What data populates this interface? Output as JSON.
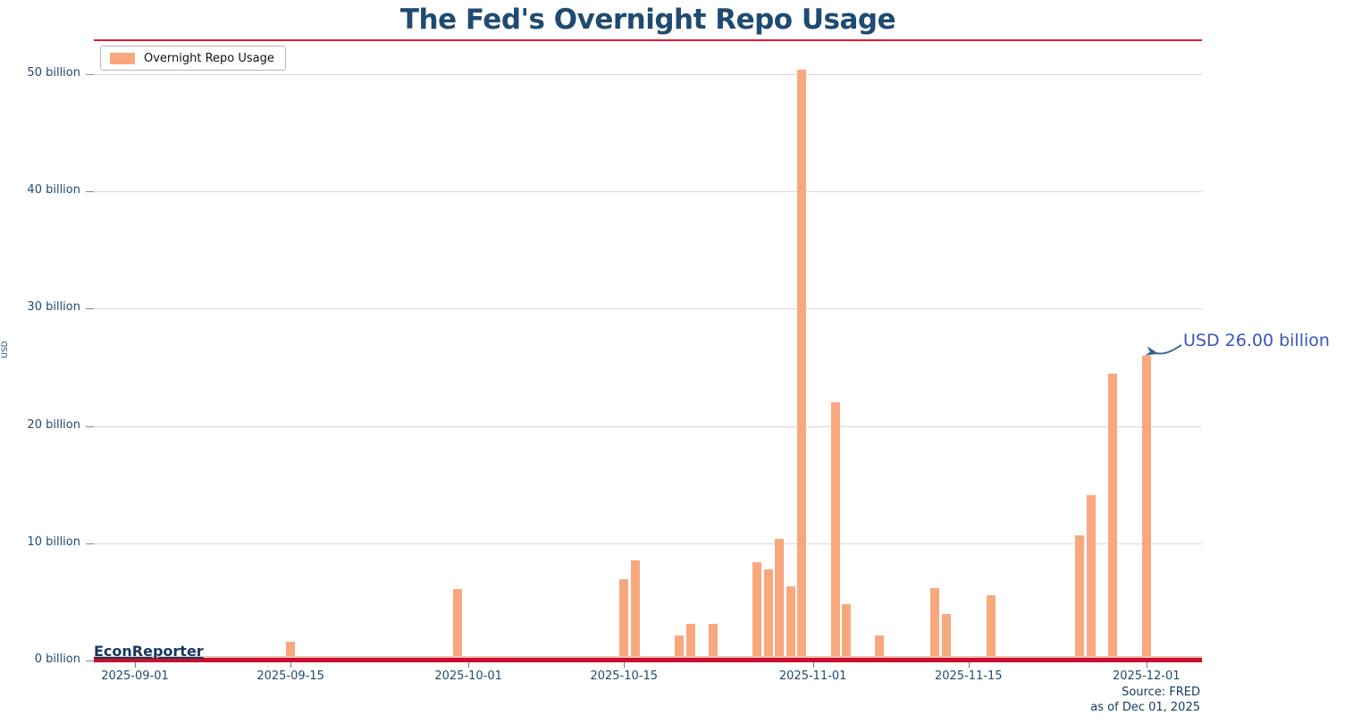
{
  "title": "The Fed's Overnight Repo Usage",
  "legend": {
    "label": "Overnight Repo Usage"
  },
  "watermark": "EconReporter",
  "annotation": {
    "text": "USD 26.00 billion"
  },
  "source": {
    "line1": "Source: FRED",
    "line2": "as of Dec 01, 2025"
  },
  "y_axis": {
    "label": "USD"
  },
  "colors": {
    "bar": "#f9a87e",
    "title": "#1f4b72",
    "axis_text": "#1f4b72",
    "gridline": "#d9d9d9",
    "baseline_red": "#c8102e",
    "title_rule_red": "#e3182e",
    "annotation_text": "#3b54ba",
    "arrow": "#35608d",
    "watermark": "#17375e",
    "source_text": "#17375e"
  },
  "chart_data": {
    "type": "bar",
    "title": "The Fed's Overnight Repo Usage",
    "xlabel": "",
    "ylabel": "USD",
    "unit": "billion USD",
    "ylim": [
      0,
      52.5
    ],
    "grid": "horizontal",
    "legend_position": "top-left",
    "yticks": [
      {
        "value": 0,
        "label": "0 billion"
      },
      {
        "value": 10,
        "label": "10 billion"
      },
      {
        "value": 20,
        "label": "20 billion"
      },
      {
        "value": 30,
        "label": "30 billion"
      },
      {
        "value": 40,
        "label": "40 billion"
      },
      {
        "value": 50,
        "label": "50 billion"
      }
    ],
    "xticks": [
      {
        "date": "2025-09-01",
        "label": "2025-09-01"
      },
      {
        "date": "2025-09-15",
        "label": "2025-09-15"
      },
      {
        "date": "2025-10-01",
        "label": "2025-10-01"
      },
      {
        "date": "2025-10-15",
        "label": "2025-10-15"
      },
      {
        "date": "2025-11-01",
        "label": "2025-11-01"
      },
      {
        "date": "2025-11-15",
        "label": "2025-11-15"
      },
      {
        "date": "2025-12-01",
        "label": "2025-12-01"
      }
    ],
    "series": [
      {
        "name": "Overnight Repo Usage",
        "points": [
          {
            "date": "2025-09-09",
            "value": 0.2
          },
          {
            "date": "2025-09-15",
            "value": 1.6
          },
          {
            "date": "2025-09-30",
            "value": 6.1
          },
          {
            "date": "2025-10-03",
            "value": 0.2
          },
          {
            "date": "2025-10-08",
            "value": 0.2
          },
          {
            "date": "2025-10-15",
            "value": 6.9
          },
          {
            "date": "2025-10-16",
            "value": 8.5
          },
          {
            "date": "2025-10-20",
            "value": 2.1
          },
          {
            "date": "2025-10-21",
            "value": 3.1
          },
          {
            "date": "2025-10-23",
            "value": 3.1
          },
          {
            "date": "2025-10-27",
            "value": 8.4
          },
          {
            "date": "2025-10-28",
            "value": 7.8
          },
          {
            "date": "2025-10-29",
            "value": 10.4
          },
          {
            "date": "2025-10-30",
            "value": 6.3
          },
          {
            "date": "2025-10-31",
            "value": 50.35
          },
          {
            "date": "2025-11-03",
            "value": 22.0
          },
          {
            "date": "2025-11-04",
            "value": 4.8
          },
          {
            "date": "2025-11-05",
            "value": 0.2
          },
          {
            "date": "2025-11-07",
            "value": 2.1
          },
          {
            "date": "2025-11-12",
            "value": 6.2
          },
          {
            "date": "2025-11-13",
            "value": 4.0
          },
          {
            "date": "2025-11-17",
            "value": 5.6
          },
          {
            "date": "2025-11-25",
            "value": 10.7
          },
          {
            "date": "2025-11-26",
            "value": 14.1
          },
          {
            "date": "2025-11-28",
            "value": 24.5
          },
          {
            "date": "2025-12-01",
            "value": 26.0
          }
        ],
        "annotated_point": {
          "date": "2025-12-01",
          "value": 26.0
        }
      }
    ]
  }
}
